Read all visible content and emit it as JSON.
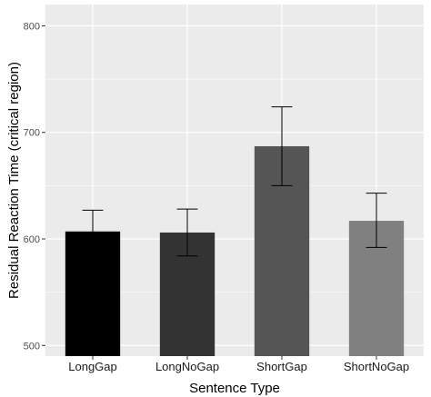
{
  "chart_data": {
    "type": "bar",
    "xlabel": "Sentence Type",
    "ylabel": "Residual Reaction Time (critical region)",
    "ylim": [
      490,
      820
    ],
    "yticks": [
      500,
      600,
      700,
      800
    ],
    "grid": true,
    "categories": [
      "LongGap",
      "LongNoGap",
      "ShortGap",
      "ShortNoGap"
    ],
    "values": [
      607,
      606,
      687,
      617
    ],
    "error_upper": [
      627,
      628,
      724,
      643
    ],
    "error_lower": [
      587,
      584,
      650,
      592
    ],
    "colors": [
      "#000000",
      "#333333",
      "#555555",
      "#808080"
    ],
    "panel_background": "#ebebeb",
    "grid_color": "#ffffff"
  }
}
